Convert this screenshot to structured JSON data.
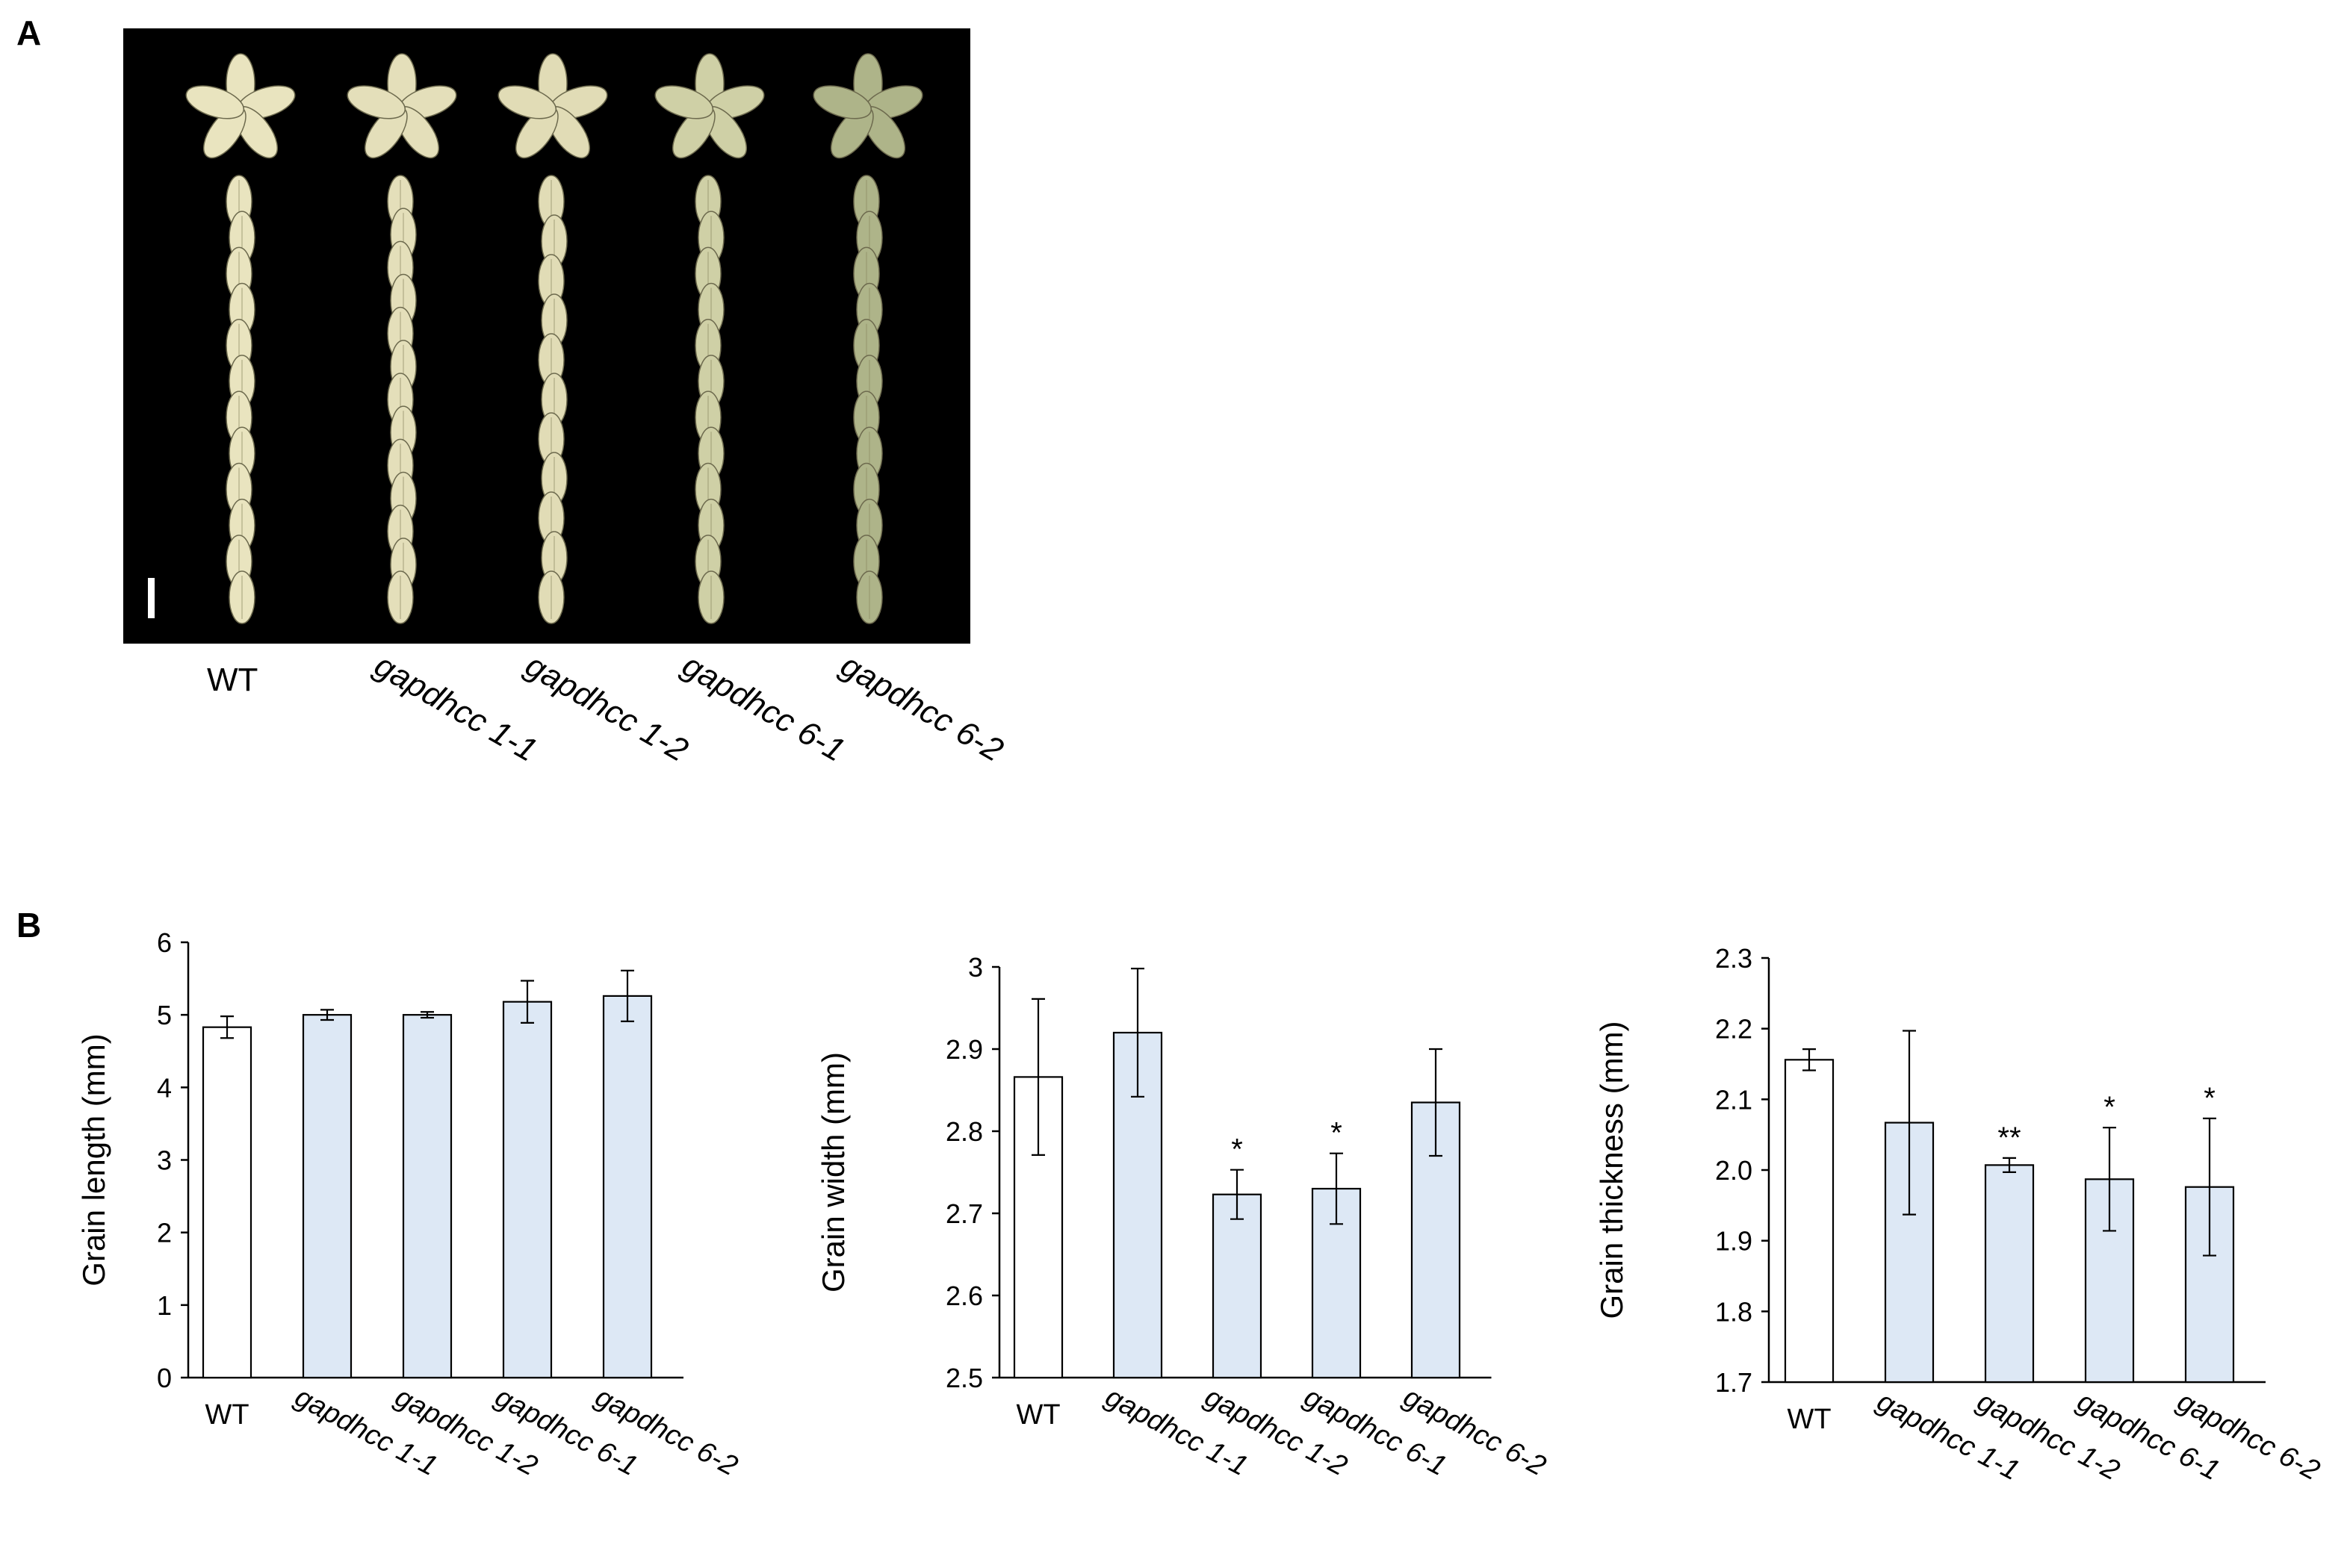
{
  "panel_labels": {
    "a": "A",
    "b": "B"
  },
  "photo": {
    "genotypes": [
      "WT",
      "gapdhcc 1-1",
      "gapdhcc 1-2",
      "gapdhcc 6-1",
      "gapdhcc 6-2"
    ],
    "grains_per_line": [
      12,
      13,
      11,
      12,
      12
    ],
    "grain_colors": [
      "#e9e4bf",
      "#e4dfba",
      "#e1dcb6",
      "#cfd0a6",
      "#aeb489"
    ]
  },
  "colors": {
    "wt_fill": "#ffffff",
    "mutant_fill": "#dde8f5",
    "edge": "#000000",
    "photo_bg": "#000000"
  },
  "chart_data": [
    {
      "type": "bar",
      "categories": [
        "WT",
        "gapdhcc 1-1",
        "gapdhcc 1-2",
        "gapdhcc 6-1",
        "gapdhcc 6-2"
      ],
      "values": [
        4.83,
        5.0,
        5.0,
        5.18,
        5.26
      ],
      "errors": [
        0.15,
        0.07,
        0.04,
        0.29,
        0.35
      ],
      "significance": [
        "",
        "",
        "",
        "",
        ""
      ],
      "ylabel": "Grain length (mm)",
      "ylim": [
        0,
        6
      ],
      "yticks": [
        0,
        1,
        2,
        3,
        4,
        5,
        6
      ],
      "ytick_labels": [
        "0",
        "1",
        "2",
        "3",
        "4",
        "5",
        "6"
      ],
      "grid": false
    },
    {
      "type": "bar",
      "categories": [
        "WT",
        "gapdhcc 1-1",
        "gapdhcc 1-2",
        "gapdhcc 6-1",
        "gapdhcc 6-2"
      ],
      "values": [
        2.866,
        2.92,
        2.723,
        2.73,
        2.835
      ],
      "errors": [
        0.095,
        0.078,
        0.03,
        0.043,
        0.065
      ],
      "significance": [
        "",
        "",
        "*",
        "*",
        ""
      ],
      "ylabel": "Grain width (mm)",
      "ylim": [
        2.5,
        3.0
      ],
      "yticks": [
        2.5,
        2.6,
        2.7,
        2.8,
        2.9,
        3.0
      ],
      "ytick_labels": [
        "2.5",
        "2.6",
        "2.7",
        "2.8",
        "2.9",
        "3"
      ],
      "grid": false
    },
    {
      "type": "bar",
      "categories": [
        "WT",
        "gapdhcc 1-1",
        "gapdhcc 1-2",
        "gapdhcc 6-1",
        "gapdhcc 6-2"
      ],
      "values": [
        2.156,
        2.067,
        2.007,
        1.987,
        1.976
      ],
      "errors": [
        0.015,
        0.13,
        0.01,
        0.073,
        0.097
      ],
      "significance": [
        "",
        "",
        "**",
        "*",
        "*"
      ],
      "ylabel": "Grain thickness (mm)",
      "ylim": [
        1.7,
        2.3
      ],
      "yticks": [
        1.7,
        1.8,
        1.9,
        2.0,
        2.1,
        2.2,
        2.3
      ],
      "ytick_labels": [
        "1.7",
        "1.8",
        "1.9",
        "2.0",
        "2.1",
        "2.2",
        "2.3"
      ],
      "grid": false
    }
  ]
}
